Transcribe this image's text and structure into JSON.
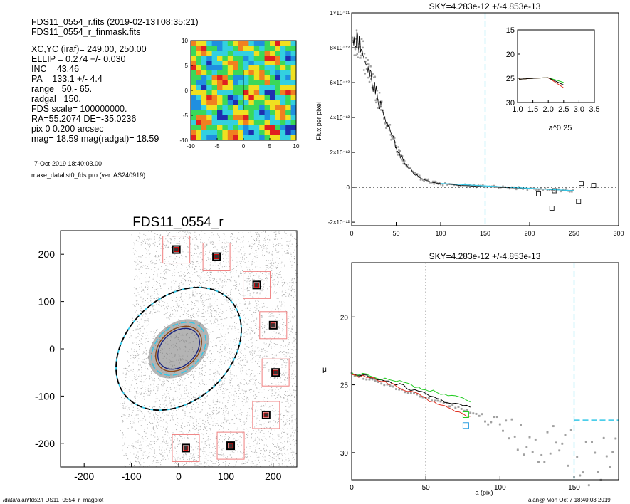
{
  "header": {
    "lines": [
      "FDS11_0554_r.fits  (2019-02-13T08:35:21)",
      "FDS11_0554_r_finmask.fits",
      "",
      "XC,YC (iraf)=   249.00, 250.00",
      "ELLIP = 0.274 +/- 0.030",
      "INC   = 43.46",
      "PA    = 133.1 +/-   4.4",
      "range=   50.-   65.",
      "radgal=  150.",
      "FDS scale=  100000000.",
      "RA=55.2074   DE=-35.0236",
      "pix 0 0.200 arcsec",
      "mag=  18.59  mag(radgal)=  18.59"
    ],
    "date": "7-Oct-2019 18:40:03.00",
    "program": "make_datalist0_fds.pro (ver. AS240919)"
  },
  "footer": {
    "left": "/data/alan/fds2/FDS11_0554_r_magplot",
    "right": "alan@  Mon Oct  7 18:40:03 2019"
  },
  "colors": {
    "cyan": "#33c8e8",
    "red": "#e03020",
    "green": "#22cc22",
    "brown": "#8b4513",
    "navy": "#1a237e",
    "gray": "#a0a0a0",
    "black": "#000000",
    "box_red": "#f08080"
  },
  "chart_data": [
    {
      "type": "heatmap",
      "panel": "residual-map",
      "xlim": [
        -10,
        10
      ],
      "ylim": [
        -10,
        10
      ],
      "x_ticks": [
        "-10",
        "-5",
        "0",
        "5",
        "10"
      ],
      "y_ticks": [
        "-10",
        "-5",
        "0",
        "5",
        "10"
      ],
      "colormap": [
        "#1e2fb0",
        "#1f8fe0",
        "#33d0e0",
        "#3ad85a",
        "#f0e020",
        "#f08020",
        "#e02020"
      ],
      "note_grid_cells": 20
    },
    {
      "type": "scatter",
      "panel": "image",
      "title": "FDS11_0554_r",
      "xlim": [
        -250,
        250
      ],
      "ylim": [
        -250,
        250
      ],
      "x_ticks": [
        "-200",
        "-100",
        "0",
        "100",
        "200"
      ],
      "y_ticks": [
        "-200",
        "-100",
        "0",
        "100",
        "200"
      ],
      "ellipses": [
        {
          "a": 150,
          "b": 109,
          "pa": 133.1,
          "color": "cyan",
          "dashed": true
        },
        {
          "a": 65,
          "b": 47,
          "pa": 133.1,
          "color": "cyan",
          "dashed": true
        },
        {
          "a": 55,
          "b": 40,
          "pa": 133.1,
          "color": "brown",
          "dashed": false
        },
        {
          "a": 50,
          "b": 36,
          "pa": 133.1,
          "color": "navy",
          "dashed": false
        }
      ],
      "mask_boxes": [
        {
          "x": -5,
          "y": 210
        },
        {
          "x": 80,
          "y": 195
        },
        {
          "x": 165,
          "y": 135
        },
        {
          "x": 200,
          "y": 50
        },
        {
          "x": 205,
          "y": -50
        },
        {
          "x": 185,
          "y": -140
        },
        {
          "x": 15,
          "y": -210
        },
        {
          "x": 110,
          "y": -205
        }
      ]
    },
    {
      "type": "line",
      "panel": "sky-profile",
      "title": "SKY=4.283e-12 +/-4.853e-13",
      "ylabel": "Flux per pixel",
      "xlim": [
        0,
        300
      ],
      "ylim": [
        -2.2e-12,
        1e-11
      ],
      "x_ticks": [
        0,
        50,
        100,
        150,
        200,
        250,
        300
      ],
      "y_ticks": [
        "-2×10⁻¹²",
        "0",
        "2×10⁻¹²",
        "4×10⁻¹²",
        "6×10⁻¹²",
        "8×10⁻¹²",
        "1×10⁻¹¹"
      ],
      "x": [
        1,
        5,
        10,
        15,
        20,
        25,
        30,
        35,
        40,
        45,
        50,
        55,
        60,
        70,
        80,
        90,
        100,
        120,
        140,
        160,
        180,
        200,
        220,
        240,
        250
      ],
      "y": [
        8.6e-12,
        8.5e-12,
        8.2e-12,
        7.3e-12,
        6.5e-12,
        5.8e-12,
        5e-12,
        4.3e-12,
        3.6e-12,
        3e-12,
        2.3e-12,
        1.8e-12,
        1.4e-12,
        8e-13,
        4.5e-13,
        3e-13,
        2e-13,
        1.2e-13,
        6e-14,
        1e-14,
        -3e-14,
        -8e-14,
        -1.2e-13,
        -1.8e-13,
        -2e-13
      ],
      "vline": 150,
      "outliers": [
        {
          "x": 210,
          "y": -3.8e-13
        },
        {
          "x": 225,
          "y": -1.2e-12
        },
        {
          "x": 228,
          "y": -2e-13
        },
        {
          "x": 255,
          "y": -8e-13
        },
        {
          "x": 258,
          "y": 2.2e-13
        },
        {
          "x": 272,
          "y": 1e-13
        }
      ],
      "inset": {
        "xlabel": "a^0.25",
        "xlim": [
          1.0,
          3.5
        ],
        "ylim": [
          15,
          30
        ],
        "x_ticks": [
          "1.0",
          "1.5",
          "2.0",
          "2.5",
          "3.0",
          "3.5"
        ],
        "y_ticks": [
          "15",
          "20",
          "25",
          "30"
        ]
      }
    },
    {
      "type": "line",
      "panel": "surface-brightness",
      "title": "SKY=4.283e-12 +/-4.853e-13",
      "xlabel": "a (pix)",
      "ylabel": "μ",
      "xlim": [
        0,
        180
      ],
      "ylim": [
        32,
        16
      ],
      "x_ticks": [
        "0",
        "50",
        "100",
        "150"
      ],
      "y_ticks": [
        "20",
        "25",
        "30"
      ],
      "vlines_dotted": [
        50,
        65
      ],
      "vline_cyan": 150,
      "hline_cyan": {
        "y": 27.6,
        "x0": 150,
        "x1": 180
      },
      "series": [
        {
          "color": "black",
          "x": [
            0,
            10,
            20,
            30,
            40,
            50,
            60,
            70,
            80
          ],
          "y": [
            24.2,
            24.3,
            24.6,
            24.9,
            25.3,
            25.7,
            26.1,
            26.4,
            26.7
          ]
        },
        {
          "color": "green",
          "x": [
            0,
            10,
            20,
            30,
            40,
            50,
            60,
            70,
            80
          ],
          "y": [
            24.2,
            24.3,
            24.5,
            24.7,
            25.0,
            25.3,
            25.6,
            25.9,
            26.2
          ]
        },
        {
          "color": "red",
          "x": [
            0,
            10,
            20,
            30,
            40,
            50,
            60,
            70,
            80
          ],
          "y": [
            24.3,
            24.4,
            24.7,
            25.1,
            25.5,
            26.0,
            26.5,
            27.0,
            27.3
          ]
        }
      ]
    }
  ]
}
